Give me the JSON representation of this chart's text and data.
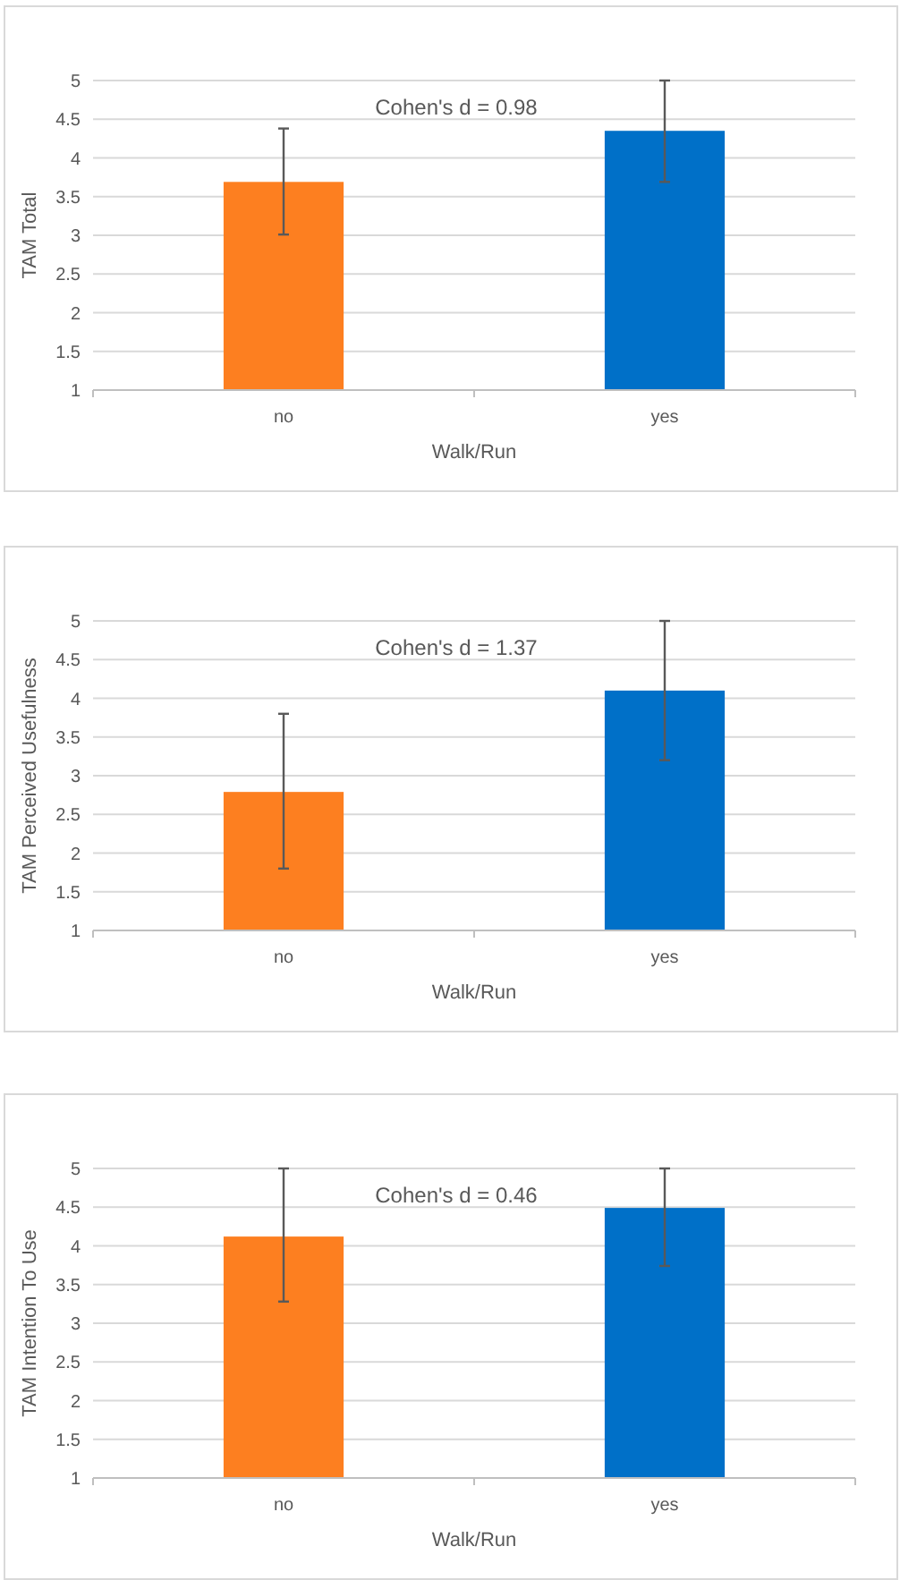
{
  "chart_data": [
    {
      "type": "bar",
      "xlabel": "Walk/Run",
      "ylabel": "TAM Total",
      "categories": [
        "no",
        "yes"
      ],
      "values": [
        3.69,
        4.35
      ],
      "colors": [
        "#fd7f20",
        "#0070c8"
      ],
      "errors": [
        [
          3.01,
          4.38
        ],
        [
          3.69,
          5.0
        ]
      ],
      "ylim": [
        1,
        5
      ],
      "yticks": [
        1,
        1.5,
        2,
        2.5,
        3,
        3.5,
        4,
        4.5,
        5
      ],
      "grid": "y",
      "annotations": [
        "Cohen's d = 0.98"
      ]
    },
    {
      "type": "bar",
      "xlabel": "Walk/Run",
      "ylabel": "TAM Perceived Usefulness",
      "categories": [
        "no",
        "yes"
      ],
      "values": [
        2.79,
        4.1
      ],
      "colors": [
        "#fd7f20",
        "#0070c8"
      ],
      "errors": [
        [
          1.8,
          3.8
        ],
        [
          3.2,
          5.0
        ]
      ],
      "ylim": [
        1,
        5
      ],
      "yticks": [
        1,
        1.5,
        2,
        2.5,
        3,
        3.5,
        4,
        4.5,
        5
      ],
      "grid": "y",
      "annotations": [
        "Cohen's d = 1.37"
      ]
    },
    {
      "type": "bar",
      "xlabel": "Walk/Run",
      "ylabel": "TAM Intention To Use",
      "categories": [
        "no",
        "yes"
      ],
      "values": [
        4.12,
        4.49
      ],
      "colors": [
        "#fd7f20",
        "#0070c8"
      ],
      "errors": [
        [
          3.28,
          5.0
        ],
        [
          3.74,
          5.0
        ]
      ],
      "ylim": [
        1,
        5
      ],
      "yticks": [
        1,
        1.5,
        2,
        2.5,
        3,
        3.5,
        4,
        4.5,
        5
      ],
      "grid": "y",
      "annotations": [
        "Cohen's d = 0.46"
      ]
    }
  ]
}
